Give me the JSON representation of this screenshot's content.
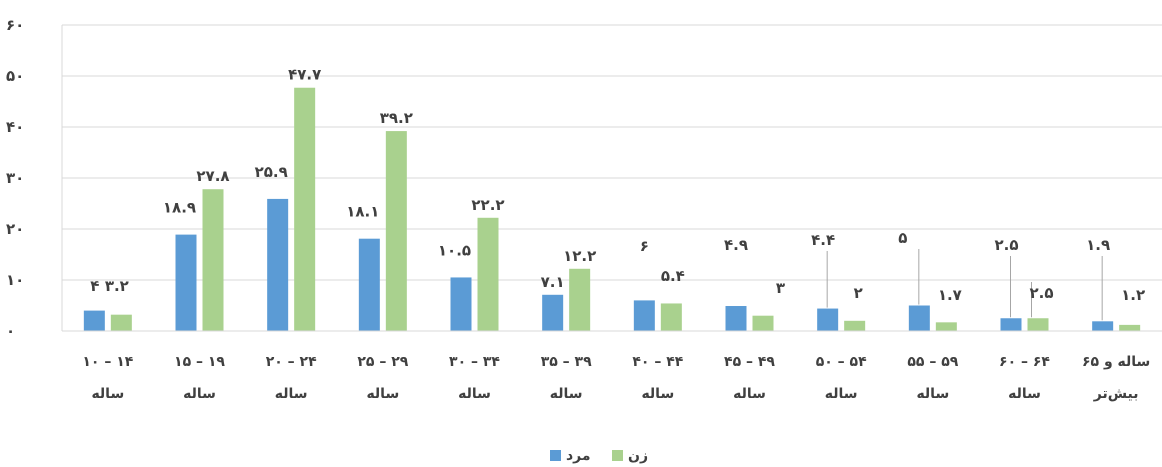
{
  "chart_data": {
    "type": "bar",
    "categories": [
      [
        "۱۰ – ۱۴",
        "ساله"
      ],
      [
        "۱۵ – ۱۹",
        "ساله"
      ],
      [
        "۲۰ – ۲۴",
        "ساله"
      ],
      [
        "۲۵ – ۲۹",
        "ساله"
      ],
      [
        "۳۰ – ۳۴",
        "ساله"
      ],
      [
        "۳۵ – ۳۹",
        "ساله"
      ],
      [
        "۴۰ – ۴۴",
        "ساله"
      ],
      [
        "۴۵ – ۴۹",
        "ساله"
      ],
      [
        "۵۰ – ۵۴",
        "ساله"
      ],
      [
        "۵۵ – ۵۹",
        "ساله"
      ],
      [
        "۶۰ – ۶۴",
        "ساله"
      ],
      [
        "۶۵ ساله و",
        "بیش‌تر"
      ]
    ],
    "series": [
      {
        "name": "مرد",
        "color": "#5b9bd5",
        "values": [
          4,
          18.9,
          25.9,
          18.1,
          10.5,
          7.1,
          6,
          4.9,
          4.4,
          5,
          2.5,
          1.9
        ],
        "labels": [
          "۴",
          "۱۸.۹",
          "۲۵.۹",
          "۱۸.۱",
          "۱۰.۵",
          "۷.۱",
          "۶",
          "۴.۹",
          "۴.۴",
          "۵",
          "۲.۵",
          "۱.۹"
        ]
      },
      {
        "name": "زن",
        "color": "#a9d18e",
        "values": [
          3.2,
          27.8,
          47.7,
          39.2,
          22.2,
          12.2,
          5.4,
          3,
          2,
          1.7,
          2.5,
          1.2
        ],
        "labels": [
          "۳.۲",
          "۲۷.۸",
          "۴۷.۷",
          "۳۹.۲",
          "۲۲.۲",
          "۱۲.۲",
          "۵.۴",
          "۳",
          "۲",
          "۱.۷",
          "۲.۵",
          "۱.۲"
        ]
      }
    ],
    "ylim": [
      0,
      60
    ],
    "yticks": [
      0,
      10,
      20,
      30,
      40,
      50,
      60
    ],
    "ytick_labels": [
      "۰",
      "۱۰",
      "۲۰",
      "۳۰",
      "۴۰",
      "۵۰",
      "۶۰"
    ],
    "grid": true,
    "legend": "bottom-center",
    "title": "",
    "xlabel": "",
    "ylabel": ""
  }
}
